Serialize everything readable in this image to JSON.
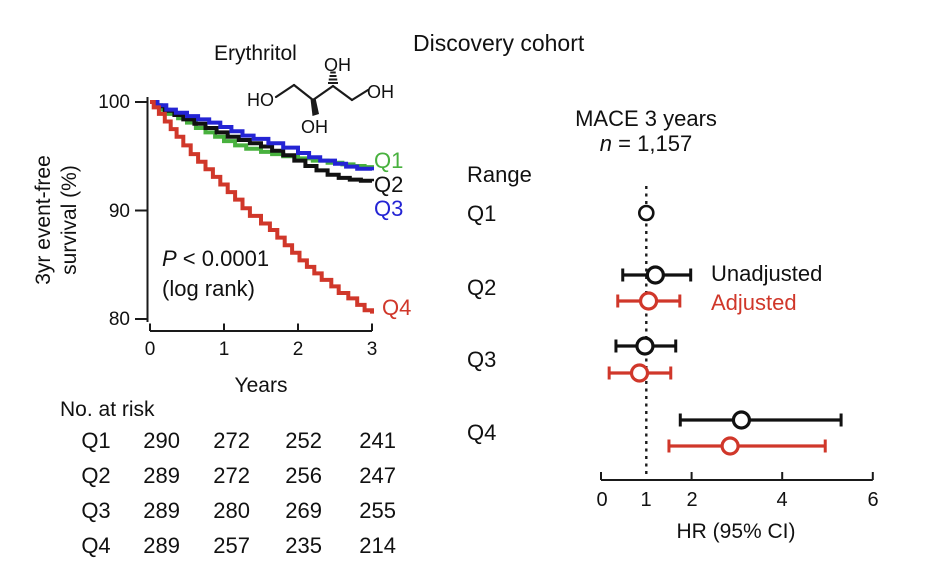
{
  "header": {
    "title": "Discovery cohort"
  },
  "molecule": {
    "name": "Erythritol",
    "ho_left": "HO",
    "oh_top": "OH",
    "oh_bottom": "OH",
    "oh_right": "OH"
  },
  "risk_table": {
    "title": "No. at risk",
    "times": [
      0,
      1,
      2,
      3
    ],
    "rows": [
      {
        "label": "Q1",
        "values": [
          "290",
          "272",
          "252",
          "241"
        ]
      },
      {
        "label": "Q2",
        "values": [
          "289",
          "272",
          "256",
          "247"
        ]
      },
      {
        "label": "Q3",
        "values": [
          "289",
          "280",
          "269",
          "255"
        ]
      },
      {
        "label": "Q4",
        "values": [
          "289",
          "257",
          "235",
          "214"
        ]
      }
    ]
  },
  "chart_data": [
    {
      "id": "km-survival",
      "type": "line",
      "subtype": "kaplan-meier-step",
      "xlabel": "Years",
      "ylabel": "3yr event-free survival (%)",
      "ylabel_lines": [
        "3yr event-free",
        "survival (%)"
      ],
      "xlim": [
        0,
        3
      ],
      "ylim": [
        80,
        100
      ],
      "xticks": [
        "0",
        "1",
        "2",
        "3"
      ],
      "xtick_values": [
        0,
        1,
        2,
        3
      ],
      "yticks": [
        "100",
        "90",
        "80"
      ],
      "ytick_values": [
        100,
        90,
        80
      ],
      "annotation": {
        "pvalue_italic": "P",
        "pvalue_rest": " < 0.0001",
        "line2": "(log rank)"
      },
      "series": [
        {
          "name": "Q1",
          "color": "#48b13e",
          "points": [
            [
              0,
              100
            ],
            [
              0.07,
              99.7
            ],
            [
              0.15,
              99.3
            ],
            [
              0.25,
              98.9
            ],
            [
              0.38,
              98.5
            ],
            [
              0.5,
              98.1
            ],
            [
              0.62,
              97.6
            ],
            [
              0.75,
              97.2
            ],
            [
              0.88,
              96.8
            ],
            [
              1.0,
              96.4
            ],
            [
              1.15,
              96.0
            ],
            [
              1.3,
              95.7
            ],
            [
              1.5,
              95.4
            ],
            [
              1.65,
              95.2
            ],
            [
              1.8,
              95.0
            ],
            [
              2.0,
              94.8
            ],
            [
              2.2,
              94.6
            ],
            [
              2.4,
              94.4
            ],
            [
              2.6,
              94.25
            ],
            [
              2.75,
              94.1
            ],
            [
              2.9,
              94.0
            ],
            [
              3,
              93.95
            ]
          ]
        },
        {
          "name": "Q2",
          "color": "#111111",
          "points": [
            [
              0,
              100
            ],
            [
              0.1,
              99.6
            ],
            [
              0.2,
              99.2
            ],
            [
              0.33,
              98.8
            ],
            [
              0.45,
              98.4
            ],
            [
              0.6,
              98.0
            ],
            [
              0.75,
              97.6
            ],
            [
              0.9,
              97.2
            ],
            [
              1.05,
              96.8
            ],
            [
              1.2,
              96.5
            ],
            [
              1.35,
              96.2
            ],
            [
              1.5,
              95.9
            ],
            [
              1.65,
              95.5
            ],
            [
              1.8,
              95.1
            ],
            [
              1.95,
              94.6
            ],
            [
              2.1,
              94.1
            ],
            [
              2.25,
              93.7
            ],
            [
              2.4,
              93.3
            ],
            [
              2.55,
              93.0
            ],
            [
              2.7,
              92.85
            ],
            [
              2.85,
              92.75
            ],
            [
              3,
              92.7
            ]
          ]
        },
        {
          "name": "Q3",
          "color": "#2424d4",
          "points": [
            [
              0,
              100
            ],
            [
              0.1,
              99.7
            ],
            [
              0.22,
              99.3
            ],
            [
              0.35,
              99.0
            ],
            [
              0.5,
              98.7
            ],
            [
              0.65,
              98.4
            ],
            [
              0.8,
              98.1
            ],
            [
              0.95,
              97.7
            ],
            [
              1.1,
              97.3
            ],
            [
              1.25,
              96.9
            ],
            [
              1.4,
              96.6
            ],
            [
              1.6,
              96.2
            ],
            [
              1.8,
              95.8
            ],
            [
              2.0,
              95.3
            ],
            [
              2.15,
              94.9
            ],
            [
              2.3,
              94.6
            ],
            [
              2.5,
              94.3
            ],
            [
              2.65,
              94.05
            ],
            [
              2.8,
              93.85
            ],
            [
              3,
              93.7
            ]
          ]
        },
        {
          "name": "Q4",
          "color": "#d0372a",
          "points": [
            [
              0,
              100
            ],
            [
              0.05,
              99.5
            ],
            [
              0.12,
              98.9
            ],
            [
              0.2,
              98.2
            ],
            [
              0.28,
              97.5
            ],
            [
              0.36,
              96.8
            ],
            [
              0.45,
              96.0
            ],
            [
              0.55,
              95.2
            ],
            [
              0.65,
              94.5
            ],
            [
              0.75,
              93.8
            ],
            [
              0.85,
              93.1
            ],
            [
              0.95,
              92.4
            ],
            [
              1.05,
              91.7
            ],
            [
              1.15,
              91.0
            ],
            [
              1.25,
              90.2
            ],
            [
              1.35,
              89.5
            ],
            [
              1.5,
              88.8
            ],
            [
              1.62,
              88.2
            ],
            [
              1.72,
              87.5
            ],
            [
              1.82,
              86.8
            ],
            [
              1.92,
              86.1
            ],
            [
              2.02,
              85.4
            ],
            [
              2.12,
              84.8
            ],
            [
              2.22,
              84.2
            ],
            [
              2.32,
              83.6
            ],
            [
              2.45,
              83.0
            ],
            [
              2.55,
              82.4
            ],
            [
              2.68,
              81.9
            ],
            [
              2.8,
              81.3
            ],
            [
              2.9,
              80.8
            ],
            [
              3,
              80.5
            ]
          ]
        }
      ]
    },
    {
      "id": "forest-hr",
      "type": "scatter",
      "subtype": "forest",
      "title": "MACE 3 years",
      "n_italic": "n",
      "n_rest": " = 1,157",
      "col_label": "Range",
      "xlabel": "HR (95% CI)",
      "xticks": [
        "0",
        "1",
        "2",
        "4",
        "6"
      ],
      "xtick_values": [
        0,
        1,
        2,
        4,
        6
      ],
      "xlim": [
        0,
        6
      ],
      "reference_hr": 1,
      "legend": [
        {
          "label": "Unadjusted",
          "color": "#111111"
        },
        {
          "label": "Adjusted",
          "color": "#d0372a"
        }
      ],
      "rows": [
        {
          "label": "Q1",
          "unadjusted": {
            "hr": 1.0,
            "lo": null,
            "hi": null
          },
          "adjusted": null
        },
        {
          "label": "Q2",
          "unadjusted": {
            "hr": 1.2,
            "lo": 0.48,
            "hi": 1.98
          },
          "adjusted": {
            "hr": 1.05,
            "lo": 0.37,
            "hi": 1.74
          }
        },
        {
          "label": "Q3",
          "unadjusted": {
            "hr": 0.97,
            "lo": 0.33,
            "hi": 1.65
          },
          "adjusted": {
            "hr": 0.85,
            "lo": 0.18,
            "hi": 1.54
          }
        },
        {
          "label": "Q4",
          "unadjusted": {
            "hr": 3.1,
            "lo": 1.75,
            "hi": 5.3
          },
          "adjusted": {
            "hr": 2.85,
            "lo": 1.5,
            "hi": 4.95
          }
        }
      ]
    }
  ]
}
